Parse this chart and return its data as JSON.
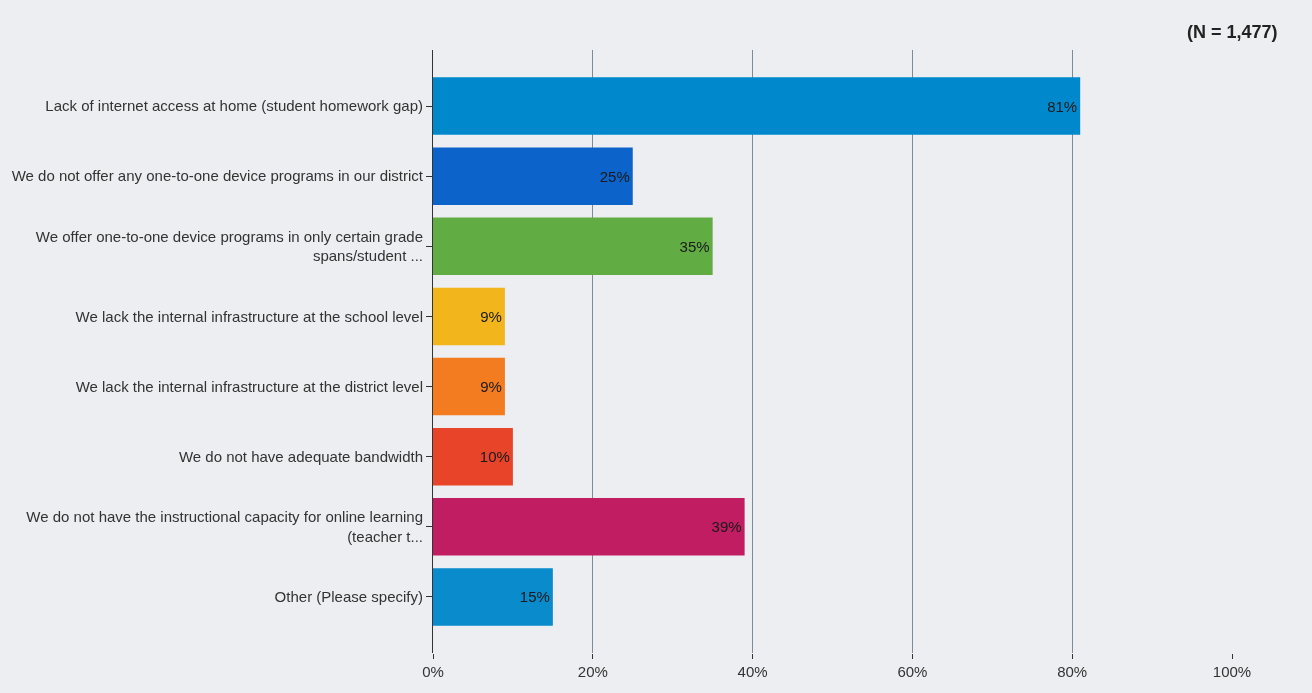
{
  "chart_data": {
    "type": "bar",
    "orientation": "horizontal",
    "categories": [
      "Lack of internet access at home (student homework gap)",
      "We do not offer any one-to-one device programs in our district",
      "We offer one-to-one device programs in only certain grade spans/student ...",
      "We lack the internal infrastructure at the school level",
      "We lack the internal infrastructure at the district level",
      "We do not have adequate bandwidth",
      "We do not have the instructional capacity for online learning (teacher t...",
      "Other (Please specify)"
    ],
    "values": [
      81,
      25,
      35,
      9,
      9,
      10,
      39,
      15
    ],
    "colors": [
      "#0088cc",
      "#0c63c9",
      "#62ac44",
      "#f3b51c",
      "#f47c20",
      "#e8442a",
      "#c11d62",
      "#0a8bcc"
    ],
    "value_labels": [
      "81%",
      "25%",
      "35%",
      "9%",
      "9%",
      "10%",
      "39%",
      "15%"
    ],
    "xlim": [
      0,
      100
    ],
    "xticks": [
      {
        "value": 0,
        "label": "0%"
      },
      {
        "value": 20,
        "label": "20%"
      },
      {
        "value": 40,
        "label": "40%"
      },
      {
        "value": 60,
        "label": "60%"
      },
      {
        "value": 80,
        "label": "80%"
      },
      {
        "value": 100,
        "label": "100%"
      }
    ],
    "grid": "x",
    "legend": false,
    "annotations": [
      "(N = 1,477)"
    ]
  }
}
